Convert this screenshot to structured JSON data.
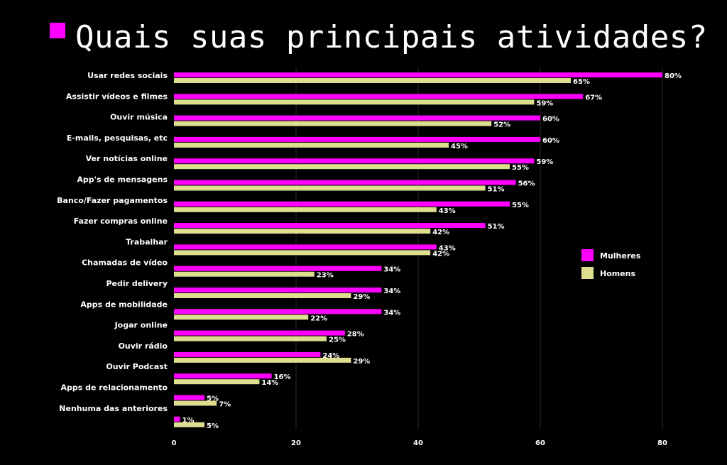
{
  "title": "Quais suas principais atividades?",
  "colors": {
    "mulheres": "#ff00ff",
    "homens": "#dede8f",
    "title_square": "#ff00ff"
  },
  "chart_data": {
    "type": "bar",
    "orientation": "horizontal",
    "title": "Quais suas principais atividades?",
    "xlim": [
      0,
      80
    ],
    "x_ticks": [
      0,
      20,
      40,
      60,
      80
    ],
    "grid": true,
    "legend_position": "right",
    "categories": [
      "Usar redes sociais",
      "Assistir vídeos e filmes",
      "Ouvir música",
      "E-mails, pesquisas, etc",
      "Ver notícias online",
      "App's de mensagens",
      "Banco/Fazer pagamentos",
      "Fazer compras online",
      "Trabalhar",
      "Chamadas de vídeo",
      "Pedir delivery",
      "Apps de mobilidade",
      "Jogar online",
      "Ouvir rádio",
      "Ouvir Podcast",
      "Apps de relacionamento",
      "Nenhuma das anteriores"
    ],
    "series": [
      {
        "name": "Mulheres",
        "values": [
          80,
          67,
          60,
          60,
          59,
          56,
          55,
          51,
          43,
          34,
          34,
          34,
          28,
          24,
          16,
          5,
          1
        ],
        "labels": [
          "80%",
          "67%",
          "60%",
          "60%",
          "59%",
          "56%",
          "55%",
          "51%",
          "43%",
          "34%",
          "34%",
          "34%",
          "28%",
          "24%",
          "16%",
          "5%",
          "1%"
        ]
      },
      {
        "name": "Homens",
        "values": [
          65,
          59,
          52,
          45,
          55,
          51,
          43,
          42,
          42,
          23,
          29,
          22,
          25,
          29,
          14,
          7,
          5
        ],
        "labels": [
          "65%",
          "59%",
          "52%",
          "45%",
          "55%",
          "51%",
          "43%",
          "42%",
          "42%",
          "23%",
          "29%",
          "22%",
          "25%",
          "29%",
          "14%",
          "7%",
          "5%"
        ]
      }
    ]
  }
}
